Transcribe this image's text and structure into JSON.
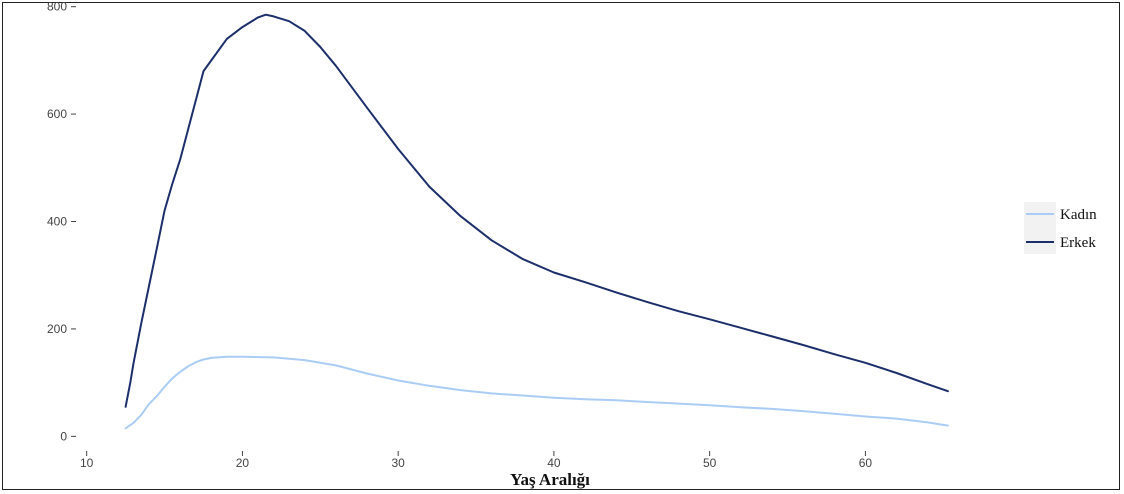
{
  "chart_data": {
    "type": "line",
    "title": "",
    "xlabel": "Yaş Aralığı",
    "ylabel": "",
    "xlim": [
      9.7,
      68.0
    ],
    "ylim": [
      -18,
      805
    ],
    "x_ticks": [
      10,
      20,
      30,
      40,
      50,
      60
    ],
    "y_ticks": [
      0,
      200,
      400,
      600,
      800
    ],
    "x_tick_labels": [
      "10",
      "20",
      "30",
      "40",
      "50",
      "60"
    ],
    "y_tick_labels": [
      "0",
      "200",
      "400",
      "600",
      "800"
    ],
    "grid": false,
    "legend_position": "right",
    "series": [
      {
        "name": "Kadın",
        "color": "#abcdf5",
        "points": [
          [
            12.5,
            15
          ],
          [
            13,
            25
          ],
          [
            13.5,
            40
          ],
          [
            14,
            60
          ],
          [
            14.5,
            75
          ],
          [
            15,
            92
          ],
          [
            15.5,
            108
          ],
          [
            16,
            120
          ],
          [
            16.5,
            130
          ],
          [
            17,
            138
          ],
          [
            17.5,
            143
          ],
          [
            18,
            146
          ],
          [
            19,
            148
          ],
          [
            20,
            148
          ],
          [
            22,
            147
          ],
          [
            24,
            142
          ],
          [
            26,
            132
          ],
          [
            28,
            117
          ],
          [
            30,
            104
          ],
          [
            32,
            94
          ],
          [
            34,
            86
          ],
          [
            36,
            80
          ],
          [
            38,
            76
          ],
          [
            40,
            72
          ],
          [
            42,
            69
          ],
          [
            44,
            67
          ],
          [
            46,
            64
          ],
          [
            48,
            61
          ],
          [
            50,
            58
          ],
          [
            52,
            54
          ],
          [
            54,
            51
          ],
          [
            56,
            47
          ],
          [
            58,
            42
          ],
          [
            60,
            37
          ],
          [
            62,
            33
          ],
          [
            64,
            26
          ],
          [
            65.3,
            20
          ]
        ]
      },
      {
        "name": "Erkek",
        "color": "#1c2f6b",
        "points": [
          [
            12.5,
            55
          ],
          [
            12.8,
            100
          ],
          [
            13,
            135
          ],
          [
            13.5,
            210
          ],
          [
            14,
            280
          ],
          [
            14.5,
            350
          ],
          [
            15,
            420
          ],
          [
            15.5,
            470
          ],
          [
            16,
            515
          ],
          [
            16.5,
            570
          ],
          [
            17,
            625
          ],
          [
            17.5,
            680
          ],
          [
            18,
            700
          ],
          [
            19,
            740
          ],
          [
            20,
            762
          ],
          [
            21,
            780
          ],
          [
            21.5,
            785
          ],
          [
            22,
            782
          ],
          [
            23,
            773
          ],
          [
            24,
            755
          ],
          [
            25,
            725
          ],
          [
            26,
            690
          ],
          [
            28,
            612
          ],
          [
            30,
            535
          ],
          [
            32,
            465
          ],
          [
            34,
            410
          ],
          [
            36,
            365
          ],
          [
            38,
            330
          ],
          [
            40,
            305
          ],
          [
            42,
            287
          ],
          [
            44,
            268
          ],
          [
            46,
            250
          ],
          [
            48,
            233
          ],
          [
            50,
            218
          ],
          [
            52,
            202
          ],
          [
            54,
            186
          ],
          [
            56,
            170
          ],
          [
            58,
            153
          ],
          [
            60,
            137
          ],
          [
            62,
            118
          ],
          [
            64,
            97
          ],
          [
            65.3,
            84
          ]
        ]
      }
    ]
  }
}
